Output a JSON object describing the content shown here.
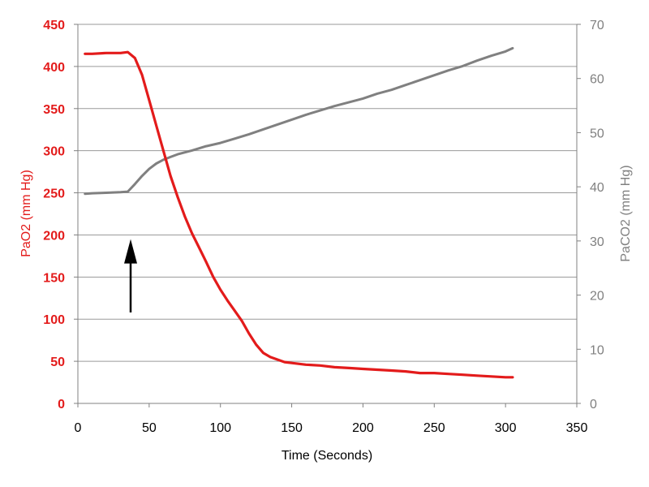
{
  "chart_data": {
    "type": "line",
    "title": "",
    "xlabel": "Time (Seconds)",
    "ylabel_left": "PaO2 (mm Hg)",
    "ylabel_right": "PaCO2 (mm Hg)",
    "xlim": [
      0,
      350
    ],
    "ylim_left": [
      0,
      450
    ],
    "ylim_right": [
      0,
      70
    ],
    "x_ticks": [
      "0",
      "50",
      "100",
      "150",
      "200",
      "250",
      "300",
      "350"
    ],
    "y_left_ticks": [
      "0",
      "50",
      "100",
      "150",
      "200",
      "250",
      "300",
      "350",
      "400",
      "450"
    ],
    "y_right_ticks": [
      "0",
      "10",
      "20",
      "30",
      "40",
      "50",
      "60",
      "70"
    ],
    "grid": "horizontal",
    "colors": {
      "pao2": "#e31b1b",
      "paco2": "#808080",
      "arrow": "#000000"
    },
    "series": [
      {
        "axis": "left",
        "color": "#e31b1b",
        "x": [
          5,
          10,
          20,
          30,
          35,
          40,
          45,
          50,
          55,
          60,
          65,
          70,
          75,
          80,
          85,
          90,
          95,
          100,
          105,
          110,
          115,
          120,
          125,
          130,
          135,
          140,
          145,
          150,
          160,
          170,
          180,
          190,
          200,
          210,
          220,
          230,
          240,
          250,
          260,
          270,
          280,
          290,
          300,
          305
        ],
        "values": [
          415,
          415,
          416,
          416,
          417,
          410,
          390,
          360,
          330,
          300,
          270,
          245,
          222,
          202,
          185,
          168,
          150,
          135,
          122,
          110,
          98,
          83,
          70,
          60,
          55,
          52,
          49,
          48,
          46,
          45,
          43,
          42,
          41,
          40,
          39,
          38,
          36,
          36,
          35,
          34,
          33,
          32,
          31,
          31
        ]
      },
      {
        "axis": "right",
        "color": "#808080",
        "x": [
          5,
          10,
          20,
          30,
          35,
          40,
          45,
          50,
          55,
          60,
          65,
          70,
          80,
          90,
          100,
          110,
          120,
          130,
          140,
          150,
          160,
          170,
          180,
          190,
          200,
          210,
          220,
          230,
          240,
          250,
          260,
          270,
          280,
          290,
          300,
          305
        ],
        "values": [
          38.7,
          38.8,
          38.9,
          39.0,
          39.1,
          40.5,
          42.0,
          43.3,
          44.3,
          45.0,
          45.5,
          46.0,
          46.7,
          47.5,
          48.1,
          48.9,
          49.7,
          50.6,
          51.5,
          52.4,
          53.3,
          54.1,
          54.9,
          55.6,
          56.3,
          57.2,
          57.9,
          58.8,
          59.7,
          60.6,
          61.5,
          62.3,
          63.3,
          64.2,
          65.0,
          65.6
        ]
      }
    ],
    "annotations": [
      {
        "type": "arrow",
        "x": 37,
        "from_left_y": 108,
        "to_left_y": 195
      }
    ]
  }
}
